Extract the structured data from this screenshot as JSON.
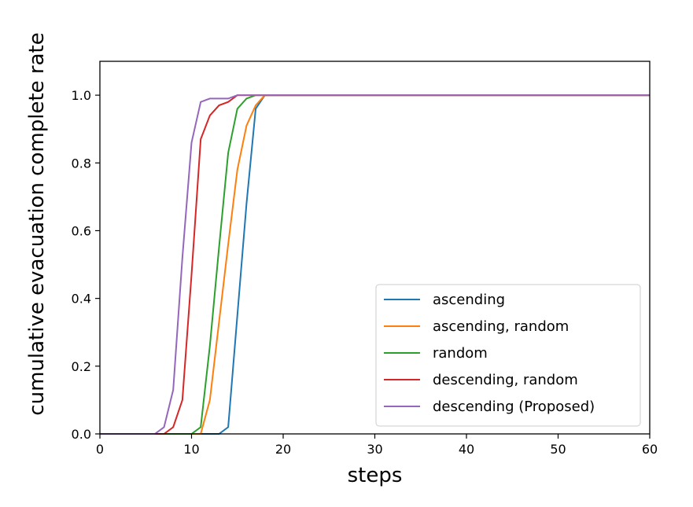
{
  "chart_data": {
    "type": "line",
    "title": "",
    "xlabel": "steps",
    "ylabel": "cumulative evacuation complete rate",
    "xlim": [
      0,
      60
    ],
    "ylim": [
      0,
      1.1
    ],
    "xticks": [
      "0",
      "10",
      "20",
      "30",
      "40",
      "50",
      "60"
    ],
    "yticks": [
      "0.0",
      "0.2",
      "0.4",
      "0.6",
      "0.8",
      "1.0"
    ],
    "grid": false,
    "legend_position": "lower-right",
    "series": [
      {
        "name": "ascending",
        "color": "#1f77b4",
        "x": [
          0,
          13,
          14,
          15,
          16,
          17,
          18,
          60
        ],
        "y": [
          0,
          0,
          0.02,
          0.35,
          0.68,
          0.96,
          1.0,
          1.0
        ]
      },
      {
        "name": "ascending, random",
        "color": "#ff7f0e",
        "x": [
          0,
          11,
          12,
          13,
          14,
          15,
          16,
          17,
          18,
          60
        ],
        "y": [
          0,
          0,
          0.1,
          0.33,
          0.56,
          0.78,
          0.91,
          0.97,
          1.0,
          1.0
        ]
      },
      {
        "name": "random",
        "color": "#2ca02c",
        "x": [
          0,
          10,
          11,
          12,
          13,
          14,
          15,
          16,
          17,
          60
        ],
        "y": [
          0,
          0,
          0.02,
          0.26,
          0.55,
          0.83,
          0.96,
          0.99,
          1.0,
          1.0
        ]
      },
      {
        "name": "descending, random",
        "color": "#d62728",
        "x": [
          0,
          7,
          8,
          9,
          10,
          11,
          12,
          13,
          14,
          15,
          16,
          60
        ],
        "y": [
          0,
          0,
          0.02,
          0.1,
          0.47,
          0.87,
          0.94,
          0.97,
          0.98,
          1.0,
          1.0,
          1.0
        ]
      },
      {
        "name": "descending (Proposed)",
        "color": "#9467bd",
        "x": [
          0,
          6,
          7,
          8,
          9,
          10,
          11,
          12,
          13,
          14,
          15,
          60
        ],
        "y": [
          0,
          0,
          0.02,
          0.13,
          0.52,
          0.86,
          0.98,
          0.99,
          0.99,
          0.99,
          1.0,
          1.0
        ]
      }
    ]
  }
}
